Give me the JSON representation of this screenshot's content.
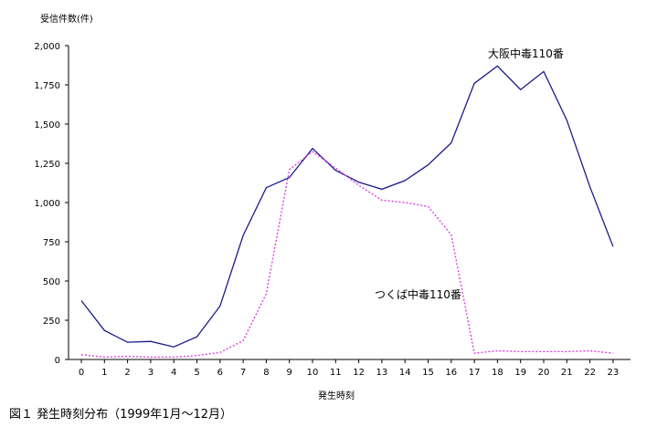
{
  "chart_data": {
    "type": "line",
    "title": "",
    "ylabel": "受信件数(件)",
    "xlabel": "発生時刻",
    "ylim": [
      0,
      2000
    ],
    "yticks": [
      0,
      250,
      500,
      750,
      1000,
      1250,
      1500,
      1750,
      2000
    ],
    "ytick_labels": [
      "0",
      "250",
      "500",
      "750",
      "1,000",
      "1,250",
      "1,500",
      "1,750",
      "2,000"
    ],
    "x": [
      "0",
      "1",
      "2",
      "3",
      "4",
      "5",
      "6",
      "7",
      "8",
      "9",
      "10",
      "11",
      "12",
      "13",
      "14",
      "15",
      "16",
      "17",
      "18",
      "19",
      "20",
      "21",
      "22",
      "23"
    ],
    "grid": false,
    "series": [
      {
        "name": "大阪中毒110番",
        "color": "#1a1a8c",
        "style": "solid",
        "values": [
          375,
          185,
          110,
          115,
          80,
          145,
          340,
          790,
          1095,
          1160,
          1345,
          1205,
          1130,
          1085,
          1140,
          1240,
          1380,
          1760,
          1870,
          1720,
          1835,
          1525,
          1100,
          720
        ]
      },
      {
        "name": "つくば中毒110番",
        "color": "#e030e0",
        "style": "dotted",
        "values": [
          30,
          15,
          20,
          15,
          15,
          25,
          45,
          120,
          420,
          1210,
          1325,
          1220,
          1110,
          1015,
          1000,
          975,
          795,
          40,
          55,
          50,
          50,
          50,
          55,
          40
        ]
      }
    ]
  },
  "caption": "図１ 発生時刻分布（1999年1月～12月）"
}
